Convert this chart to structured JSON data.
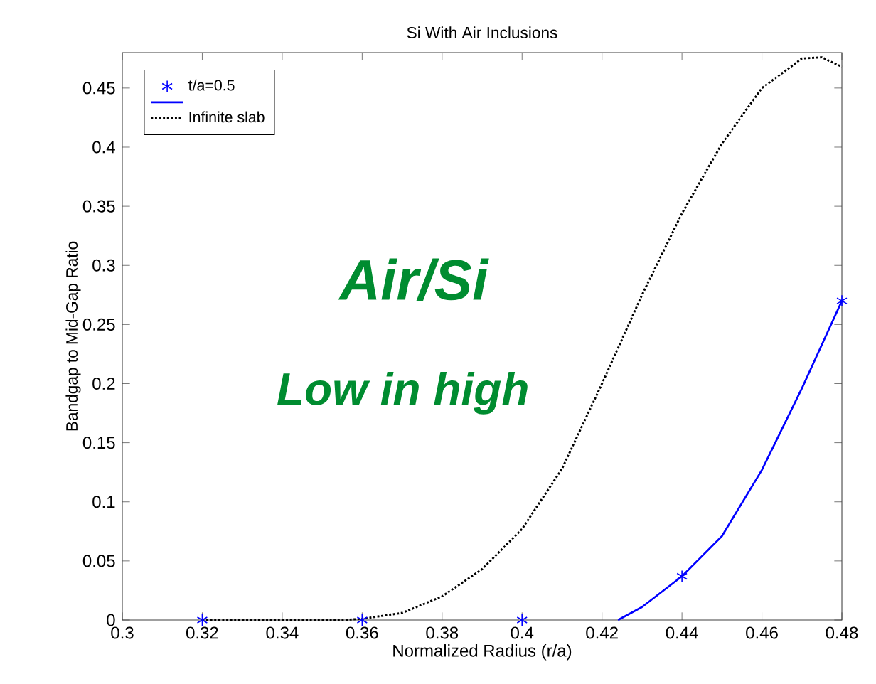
{
  "chart_data": {
    "type": "line",
    "title": "Si With Air Inclusions",
    "xlabel": "Normalized Radius (r/a)",
    "ylabel": "Bandgap to Mid-Gap Ratio",
    "annotations": [
      "Air/Si",
      "Low in high"
    ],
    "xlim": [
      0.3,
      0.48
    ],
    "ylim": [
      0,
      0.48
    ],
    "xticks": [
      0.3,
      0.32,
      0.34,
      0.36,
      0.38,
      0.4,
      0.42,
      0.44,
      0.46,
      0.48
    ],
    "yticks": [
      0,
      0.05,
      0.1,
      0.15,
      0.2,
      0.25,
      0.3,
      0.35,
      0.4,
      0.45
    ],
    "grid": false,
    "legend": "top left",
    "series": [
      {
        "name": "t/a=0.5",
        "type": "scatter",
        "marker": "cross",
        "color": "#0000ff",
        "x": [
          0.32,
          0.36,
          0.4,
          0.44,
          0.48
        ],
        "values": [
          0,
          0,
          0,
          0.037,
          0.27
        ]
      },
      {
        "line_style": "solid",
        "color": "#0000ff",
        "x": [
          0.424,
          0.43,
          0.44,
          0.45,
          0.46,
          0.47,
          0.48
        ],
        "values": [
          0,
          0.011,
          0.037,
          0.071,
          0.127,
          0.196,
          0.27
        ]
      },
      {
        "name": "Infinite slab",
        "type": "line",
        "line_style": "dotted",
        "color": "#000000",
        "x": [
          0.32,
          0.34,
          0.355,
          0.36,
          0.37,
          0.38,
          0.39,
          0.4,
          0.41,
          0.42,
          0.43,
          0.44,
          0.45,
          0.46,
          0.47,
          0.475,
          0.48
        ],
        "values": [
          0,
          0,
          0,
          0.001,
          0.006,
          0.02,
          0.043,
          0.077,
          0.128,
          0.2,
          0.275,
          0.344,
          0.403,
          0.45,
          0.475,
          0.476,
          0.468
        ]
      }
    ]
  }
}
